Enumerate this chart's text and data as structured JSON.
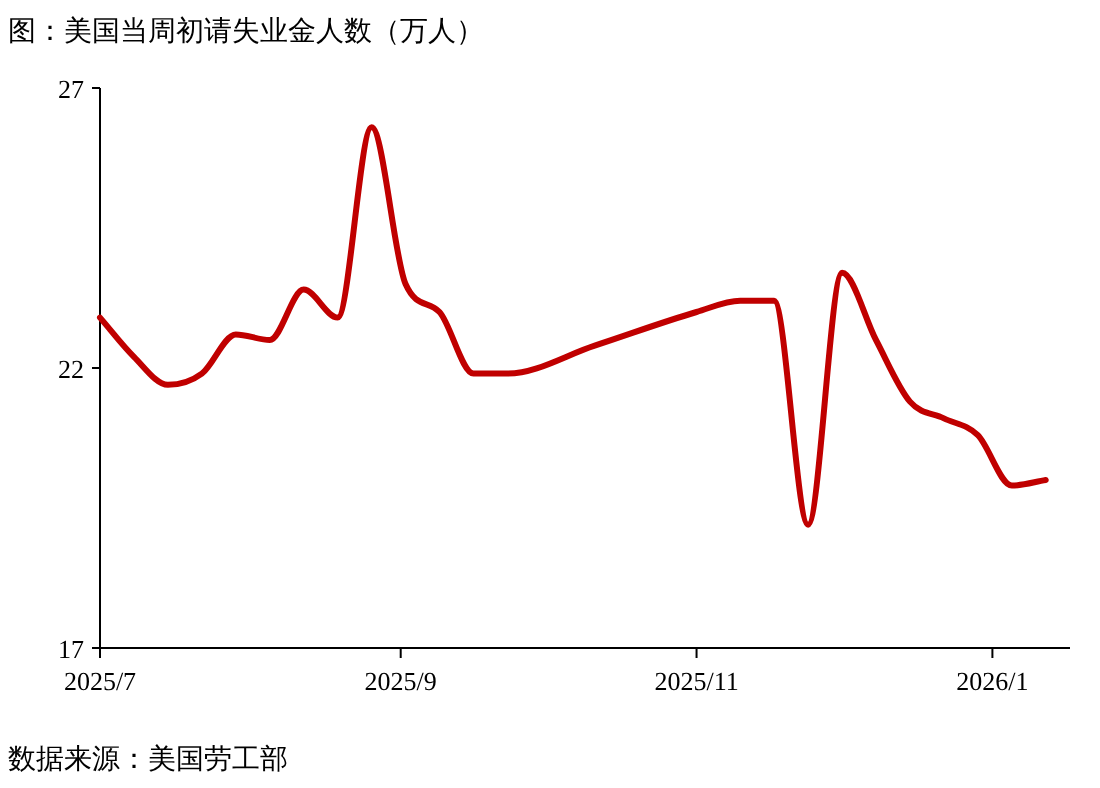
{
  "chart_data": {
    "type": "line",
    "title": "图：美国当周初请失业金人数（万人）",
    "x": [
      "2025-07-01",
      "2025-07-08",
      "2025-07-15",
      "2025-07-22",
      "2025-07-29",
      "2025-08-05",
      "2025-08-12",
      "2025-08-19",
      "2025-08-26",
      "2025-09-02",
      "2025-09-09",
      "2025-09-16",
      "2025-09-23",
      "2025-10-11",
      "2025-11-01",
      "2025-11-10",
      "2025-11-17",
      "2025-11-24",
      "2025-12-01",
      "2025-12-08",
      "2025-12-15",
      "2025-12-22",
      "2025-12-29",
      "2026-01-05",
      "2026-01-12"
    ],
    "series": [
      {
        "color": "#c00000",
        "values": [
          22.9,
          22.2,
          21.7,
          21.9,
          22.6,
          22.5,
          23.4,
          22.9,
          26.3,
          23.5,
          23.0,
          21.9,
          21.9,
          22.4,
          23.0,
          23.2,
          23.2,
          19.2,
          23.7,
          22.5,
          21.4,
          21.1,
          20.8,
          19.9,
          20.0
        ]
      }
    ],
    "xlim": [
      "2025-07-01",
      "2026-01-17"
    ],
    "xticks": [
      {
        "value": "2025-07-01",
        "label": "2025/7"
      },
      {
        "value": "2025-09-01",
        "label": "2025/9"
      },
      {
        "value": "2025-11-01",
        "label": "2025/11"
      },
      {
        "value": "2026-01-01",
        "label": "2026/1"
      }
    ],
    "ylim": [
      17,
      27
    ],
    "yticks": [
      17,
      22,
      27
    ],
    "grid": false,
    "annotations": [
      "数据来源：美国劳工部"
    ]
  }
}
